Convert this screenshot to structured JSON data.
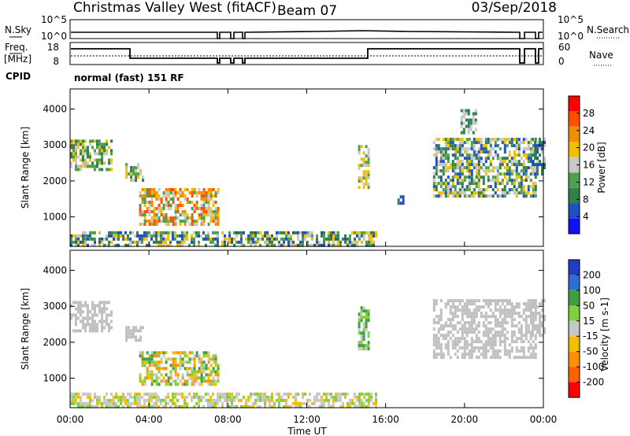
{
  "header": {
    "station": "Christmas Valley West (fitACF)",
    "beam": "Beam 07",
    "date": "03/Sep/2018"
  },
  "nsky_panel": {
    "left_label": "N.Sky",
    "right_label": "N.Search",
    "ytick_top": "10^5",
    "ytick_bottom": "10^0"
  },
  "freq_panel": {
    "left_label_line1": "Freq.",
    "left_label_line2": "[MHz]",
    "right_label": "Nave",
    "left_ticks": [
      "18",
      "8"
    ],
    "right_ticks": [
      "60",
      "0"
    ]
  },
  "cpid": {
    "label": "CPID",
    "value": "normal (fast) 151 RF"
  },
  "colors": {
    "power": [
      "#1010ff",
      "#2050c0",
      "#2f7f4f",
      "#4f9f4f",
      "#c8c8c8",
      "#f0c000",
      "#f09000",
      "#ff5000",
      "#ff0000"
    ],
    "velocity": [
      "#ff0000",
      "#ff6000",
      "#ff9000",
      "#f0c000",
      "#c8c8c8",
      "#7fcf3f",
      "#3f9f3f",
      "#2f6fcf",
      "#1f3fbf"
    ],
    "ground_scatter": "#c0c0c0"
  },
  "chart_data": [
    {
      "type": "heatmap",
      "name": "power",
      "ylabel": "Slant Range [km]",
      "yticks": [
        "1000",
        "2000",
        "3000",
        "4000"
      ],
      "ylim": [
        180,
        4560
      ],
      "xlim_hours": [
        0,
        24
      ],
      "colorbar": {
        "label": "Power [dB]",
        "ticks": [
          "4",
          "8",
          "12",
          "16",
          "20",
          "24",
          "28"
        ],
        "range": [
          0,
          32
        ]
      },
      "regions": [
        {
          "t0": 0.0,
          "t1": 2.1,
          "r0": 2350,
          "r1": 3150,
          "vals": [
            16,
            12,
            8,
            20
          ]
        },
        {
          "t0": 2.8,
          "t1": 3.7,
          "r0": 2050,
          "r1": 2500,
          "vals": [
            16,
            12,
            20,
            8
          ]
        },
        {
          "t0": 3.5,
          "t1": 7.5,
          "r0": 800,
          "r1": 1800,
          "vals": [
            24,
            28,
            20,
            16,
            12
          ]
        },
        {
          "t0": 0.0,
          "t1": 15.5,
          "r0": 220,
          "r1": 600,
          "vals": [
            8,
            12,
            16,
            20,
            4
          ]
        },
        {
          "t0": 14.6,
          "t1": 15.1,
          "r0": 1800,
          "r1": 3000,
          "vals": [
            16,
            12,
            20
          ]
        },
        {
          "t0": 16.6,
          "t1": 16.9,
          "r0": 1350,
          "r1": 1600,
          "vals": [
            8,
            4
          ]
        },
        {
          "t0": 18.4,
          "t1": 23.6,
          "r0": 1550,
          "r1": 3200,
          "vals": [
            16,
            20,
            8,
            4,
            12
          ]
        },
        {
          "t0": 19.8,
          "t1": 20.6,
          "r0": 3300,
          "r1": 4000,
          "vals": [
            8,
            16
          ]
        },
        {
          "t0": 23.4,
          "t1": 24.0,
          "r0": 2200,
          "r1": 3200,
          "vals": [
            8,
            4,
            16
          ]
        }
      ]
    },
    {
      "type": "heatmap",
      "name": "velocity",
      "ylabel": "Slant Range [km]",
      "yticks": [
        "1000",
        "2000",
        "3000",
        "4000"
      ],
      "ylim": [
        180,
        4560
      ],
      "xlim_hours": [
        0,
        24
      ],
      "colorbar": {
        "label": "Velocity [m s-1]",
        "ticks": [
          "-200",
          "-100",
          "-50",
          "-15",
          "15",
          "50",
          "100",
          "200"
        ],
        "range": [
          -250,
          250
        ]
      },
      "regions": [
        {
          "t0": 0.0,
          "t1": 2.1,
          "r0": 2350,
          "r1": 3150,
          "gs": true
        },
        {
          "t0": 2.8,
          "t1": 3.7,
          "r0": 2050,
          "r1": 2450,
          "gs": true
        },
        {
          "t0": 3.5,
          "t1": 7.5,
          "r0": 800,
          "r1": 1750,
          "vals": [
            50,
            -50,
            15,
            -100,
            100
          ]
        },
        {
          "t0": 0.0,
          "t1": 15.5,
          "r0": 220,
          "r1": 600,
          "vals": [
            -15,
            -50,
            15,
            50
          ]
        },
        {
          "t0": 14.6,
          "t1": 15.1,
          "r0": 1800,
          "r1": 3000,
          "vals": [
            50,
            15,
            100
          ]
        },
        {
          "t0": 18.4,
          "t1": 23.6,
          "r0": 1550,
          "r1": 3200,
          "gs": true
        },
        {
          "t0": 23.4,
          "t1": 24.0,
          "r0": 2200,
          "r1": 3200,
          "gs": true
        }
      ]
    }
  ],
  "xaxis": {
    "label": "Time UT",
    "ticks": [
      "00:00",
      "04:00",
      "08:00",
      "12:00",
      "16:00",
      "20:00",
      "00:00"
    ]
  }
}
